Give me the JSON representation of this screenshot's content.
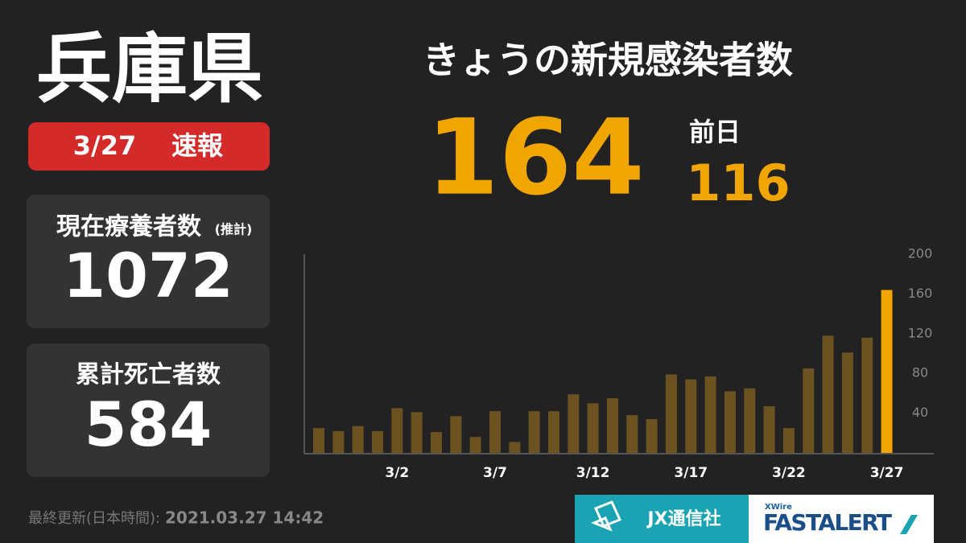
{
  "header": {
    "title": "兵庫県",
    "date": "3/27",
    "badge": "速報"
  },
  "today": {
    "label": "きょうの新規感染者数",
    "value": 164,
    "prev_label": "前日",
    "prev_value": 116
  },
  "panels": [
    {
      "label": "現在療養者数",
      "note": "(推計)",
      "value": 1072
    },
    {
      "label": "累計死亡者数",
      "value": 584
    }
  ],
  "footer": {
    "updated_label": "最終更新(日本時間):",
    "updated": "2021.03.27 14:42",
    "logo1": "JX通信社",
    "logo2_small": "XWire",
    "logo2": "FASTALERT"
  },
  "chart_data": {
    "type": "bar",
    "categories": [
      null,
      null,
      null,
      null,
      "3/2",
      null,
      null,
      null,
      null,
      "3/7",
      null,
      null,
      null,
      null,
      "3/12",
      null,
      null,
      null,
      null,
      "3/17",
      null,
      null,
      null,
      null,
      "3/22",
      null,
      null,
      null,
      null,
      "3/27"
    ],
    "values": [
      25,
      22,
      27,
      22,
      45,
      41,
      21,
      37,
      16,
      42,
      11,
      42,
      42,
      59,
      50,
      55,
      38,
      34,
      79,
      74,
      77,
      62,
      65,
      47,
      25,
      85,
      118,
      101,
      116,
      164
    ],
    "colors": [
      "#6b5220",
      "#6b5220",
      "#6b5220",
      "#6b5220",
      "#6b5220",
      "#6b5220",
      "#6b5220",
      "#6b5220",
      "#6b5220",
      "#6b5220",
      "#6b5220",
      "#6b5220",
      "#6b5220",
      "#6b5220",
      "#6b5220",
      "#6b5220",
      "#6b5220",
      "#6b5220",
      "#6b5220",
      "#6b5220",
      "#6b5220",
      "#6b5220",
      "#6b5220",
      "#6b5220",
      "#6b5220",
      "#6b5220",
      "#6b5220",
      "#6b5220",
      "#6b5220",
      "#f0a500"
    ],
    "ylim": [
      0,
      200
    ],
    "yticks": [
      40,
      80,
      120,
      160,
      200
    ],
    "grid": false
  }
}
